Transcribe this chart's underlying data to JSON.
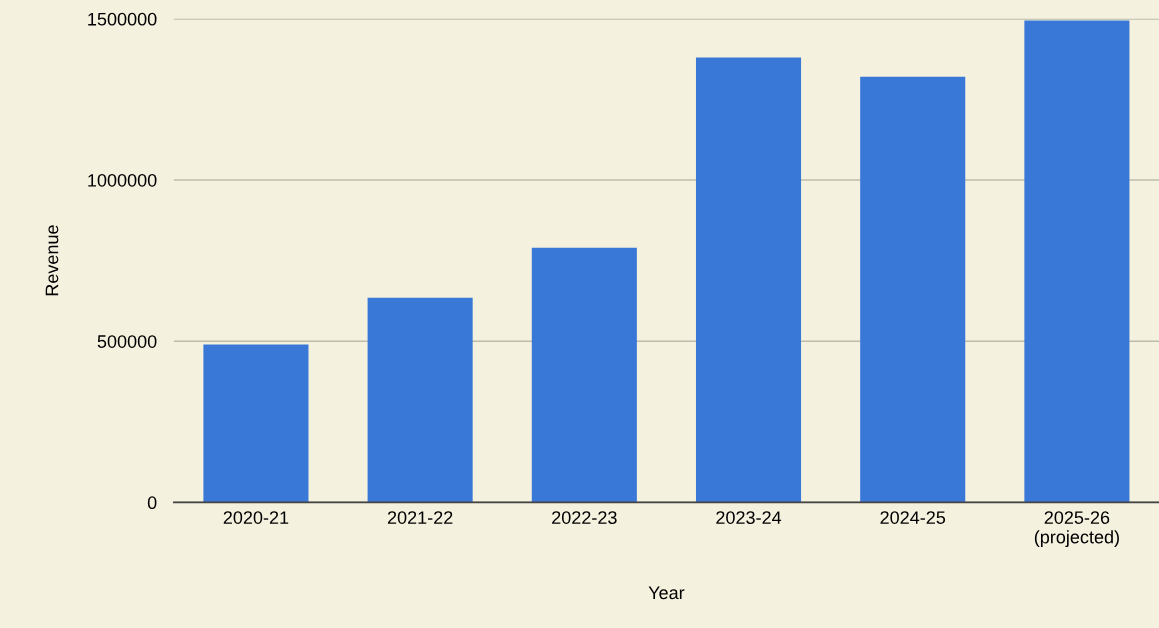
{
  "chart_data": {
    "type": "bar",
    "xlabel": "Year",
    "ylabel": "Revenue",
    "categories": [
      "2020-21",
      "2021-22",
      "2022-23",
      "2023-24",
      "2024-25",
      "2025-26\n(projected)"
    ],
    "values": [
      490000,
      635000,
      790000,
      1380000,
      1320000,
      1495000
    ],
    "color": "#3a78d8",
    "ylim": [
      0,
      1500000
    ],
    "yticks": [
      0,
      500000,
      1000000,
      1500000
    ],
    "grid": "y"
  }
}
